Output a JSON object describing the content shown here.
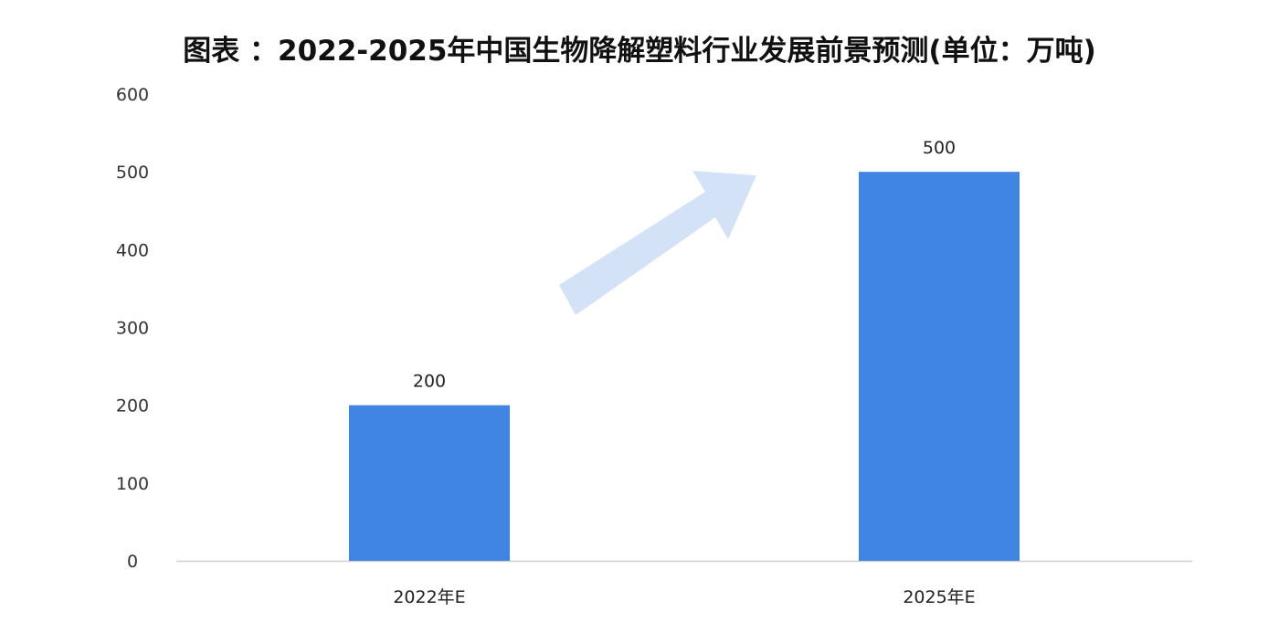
{
  "chart_data": {
    "type": "bar",
    "title": "图表 ：2022-2025年中国生物降解塑料行业发展前景预测(单位：万吨)",
    "categories": [
      "2022年E",
      "2025年E"
    ],
    "values": [
      200,
      500
    ],
    "data_labels": [
      "200",
      "500"
    ],
    "ylim": [
      0,
      600
    ],
    "yticks": [
      "0",
      "100",
      "200",
      "300",
      "400",
      "500",
      "600"
    ],
    "xlabel": "",
    "ylabel": "",
    "grid": false,
    "bar_color": "#4185e2",
    "decoration": "light-blue-up-arrow"
  }
}
